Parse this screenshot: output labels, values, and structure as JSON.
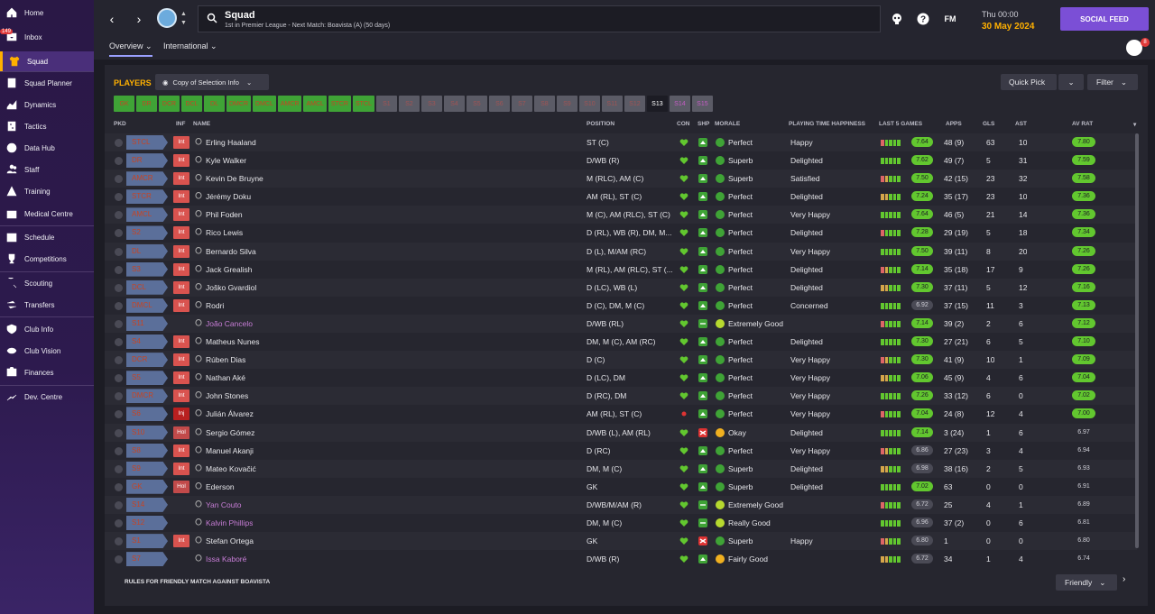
{
  "sidebar": {
    "inbox_badge": "149",
    "items": [
      {
        "label": "Home",
        "icon": "home-icon"
      },
      {
        "label": "Inbox",
        "icon": "inbox-icon"
      },
      {
        "label": "Squad",
        "icon": "shirt-icon"
      },
      {
        "label": "Squad Planner",
        "icon": "planner-icon"
      },
      {
        "label": "Dynamics",
        "icon": "dynamics-icon"
      },
      {
        "label": "Tactics",
        "icon": "tactics-icon"
      },
      {
        "label": "Data Hub",
        "icon": "data-hub-icon"
      },
      {
        "label": "Staff",
        "icon": "staff-icon"
      },
      {
        "label": "Training",
        "icon": "training-icon"
      },
      {
        "label": "Medical Centre",
        "icon": "medical-icon"
      },
      {
        "label": "Schedule",
        "icon": "calendar-icon"
      },
      {
        "label": "Competitions",
        "icon": "trophy-icon"
      },
      {
        "label": "Scouting",
        "icon": "scouting-icon"
      },
      {
        "label": "Transfers",
        "icon": "transfers-icon"
      },
      {
        "label": "Club Info",
        "icon": "shield-icon"
      },
      {
        "label": "Club Vision",
        "icon": "vision-icon"
      },
      {
        "label": "Finances",
        "icon": "finances-icon"
      },
      {
        "label": "Dev. Centre",
        "icon": "dev-centre-icon"
      }
    ]
  },
  "header": {
    "title": "Squad",
    "subtitle": "1st in Premier League - Next Match: Boavista (A) (50 days)",
    "fm_label": "FM",
    "date_time": "Thu 00:00",
    "date_day": "30 May 2024",
    "social_feed": "SOCIAL FEED",
    "avatar_badge": "8",
    "tabs": [
      "Overview",
      "International"
    ]
  },
  "panel": {
    "players_label": "PLAYERS",
    "selection_info": "Copy of Selection Info",
    "quick_pick": "Quick Pick",
    "filter": "Filter",
    "position_buttons": [
      "GK",
      "DR",
      "DCR",
      "DCL",
      "DL",
      "DMCR",
      "DMCL",
      "AMCR",
      "AMCL",
      "STCR",
      "STCL",
      "S1",
      "S2",
      "S3",
      "S4",
      "S5",
      "S6",
      "S7",
      "S8",
      "S9",
      "S10",
      "S11",
      "S12",
      "S13",
      "S14",
      "S15"
    ],
    "columns": [
      "PKD",
      "INF",
      "NAME",
      "POSITION",
      "CON",
      "SHP",
      "MORALE",
      "PLAYING TIME HAPPINESS",
      "LAST 5 GAMES",
      "APPS",
      "GLS",
      "AST",
      "AV RAT"
    ],
    "rules_text": "RULES FOR FRIENDLY MATCH AGAINST BOAVISTA",
    "friendly": "Friendly"
  },
  "colors": {
    "accent": "#ffb000",
    "social": "#7b4fd6",
    "green": "#62c72f",
    "sidebar": "#2d1a4e"
  },
  "players": [
    {
      "role": "STCL",
      "inf": "Int",
      "name": "Erling Haaland",
      "pos": "ST (C)",
      "con": "green",
      "shp": "up",
      "morale": "Perfect",
      "ptime": "Happy",
      "form": "7.64",
      "apps": "48 (9)",
      "gls": "63",
      "ast": "10",
      "avr": "7.80",
      "loan": false
    },
    {
      "role": "DR",
      "inf": "Int",
      "name": "Kyle Walker",
      "pos": "D/WB (R)",
      "con": "green",
      "shp": "up",
      "morale": "Superb",
      "ptime": "Delighted",
      "form": "7.62",
      "apps": "49 (7)",
      "gls": "5",
      "ast": "31",
      "avr": "7.59",
      "loan": false
    },
    {
      "role": "AMCR",
      "inf": "Int",
      "name": "Kevin De Bruyne",
      "pos": "M (RLC), AM (C)",
      "con": "green",
      "shp": "up",
      "morale": "Superb",
      "ptime": "Satisfied",
      "form": "7.50",
      "apps": "42 (15)",
      "gls": "23",
      "ast": "32",
      "avr": "7.58",
      "loan": false
    },
    {
      "role": "STCR",
      "inf": "Int",
      "name": "Jérémy Doku",
      "pos": "AM (RL), ST (C)",
      "con": "green",
      "shp": "up",
      "morale": "Perfect",
      "ptime": "Delighted",
      "form": "7.24",
      "apps": "35 (17)",
      "gls": "23",
      "ast": "10",
      "avr": "7.36",
      "loan": false
    },
    {
      "role": "AMCL",
      "inf": "Int",
      "name": "Phil Foden",
      "pos": "M (C), AM (RLC), ST (C)",
      "con": "green",
      "shp": "up",
      "morale": "Perfect",
      "ptime": "Very Happy",
      "form": "7.64",
      "apps": "46 (5)",
      "gls": "21",
      "ast": "14",
      "avr": "7.36",
      "loan": false
    },
    {
      "role": "S2",
      "inf": "Int",
      "name": "Rico Lewis",
      "pos": "D (RL), WB (R), DM, M...",
      "con": "green",
      "shp": "up",
      "morale": "Perfect",
      "ptime": "Delighted",
      "form": "7.28",
      "apps": "29 (19)",
      "gls": "5",
      "ast": "18",
      "avr": "7.34",
      "loan": false
    },
    {
      "role": "DL",
      "inf": "Int",
      "name": "Bernardo Silva",
      "pos": "D (L), M/AM (RC)",
      "con": "green",
      "shp": "up",
      "morale": "Perfect",
      "ptime": "Very Happy",
      "form": "7.50",
      "apps": "39 (11)",
      "gls": "8",
      "ast": "20",
      "avr": "7.26",
      "loan": false
    },
    {
      "role": "S3",
      "inf": "Int",
      "name": "Jack Grealish",
      "pos": "M (RL), AM (RLC), ST (...",
      "con": "green",
      "shp": "up",
      "morale": "Perfect",
      "ptime": "Delighted",
      "form": "7.14",
      "apps": "35 (18)",
      "gls": "17",
      "ast": "9",
      "avr": "7.26",
      "loan": false
    },
    {
      "role": "DCL",
      "inf": "Int",
      "name": "Joško Gvardiol",
      "pos": "D (LC), WB (L)",
      "con": "green",
      "shp": "up",
      "morale": "Perfect",
      "ptime": "Delighted",
      "form": "7.30",
      "apps": "37 (11)",
      "gls": "5",
      "ast": "12",
      "avr": "7.16",
      "loan": false
    },
    {
      "role": "DMCL",
      "inf": "Int",
      "name": "Rodri",
      "pos": "D (C), DM, M (C)",
      "con": "green",
      "shp": "up",
      "morale": "Perfect",
      "ptime": "Concerned",
      "form": "6.92",
      "apps": "37 (15)",
      "gls": "11",
      "ast": "3",
      "avr": "7.13",
      "loan": false
    },
    {
      "role": "S11",
      "inf": "",
      "name": "João Cancelo",
      "pos": "D/WB (RL)",
      "con": "green",
      "shp": "flat",
      "morale": "Extremely Good",
      "ptime": "",
      "form": "7.14",
      "apps": "39 (2)",
      "gls": "2",
      "ast": "6",
      "avr": "7.12",
      "loan": true
    },
    {
      "role": "S4",
      "inf": "Int",
      "name": "Matheus Nunes",
      "pos": "DM, M (C), AM (RC)",
      "con": "green",
      "shp": "up",
      "morale": "Perfect",
      "ptime": "Delighted",
      "form": "7.30",
      "apps": "27 (21)",
      "gls": "6",
      "ast": "5",
      "avr": "7.10",
      "loan": false
    },
    {
      "role": "DCR",
      "inf": "Int",
      "name": "Rúben Dias",
      "pos": "D (C)",
      "con": "green",
      "shp": "up",
      "morale": "Perfect",
      "ptime": "Very Happy",
      "form": "7.30",
      "apps": "41 (9)",
      "gls": "10",
      "ast": "1",
      "avr": "7.09",
      "loan": false
    },
    {
      "role": "S5",
      "inf": "Int",
      "name": "Nathan Aké",
      "pos": "D (LC), DM",
      "con": "green",
      "shp": "up",
      "morale": "Perfect",
      "ptime": "Very Happy",
      "form": "7.06",
      "apps": "45 (9)",
      "gls": "4",
      "ast": "6",
      "avr": "7.04",
      "loan": false
    },
    {
      "role": "DMCR",
      "inf": "Int",
      "name": "John Stones",
      "pos": "D (RC), DM",
      "con": "green",
      "shp": "up",
      "morale": "Perfect",
      "ptime": "Very Happy",
      "form": "7.26",
      "apps": "33 (12)",
      "gls": "6",
      "ast": "0",
      "avr": "7.02",
      "loan": false
    },
    {
      "role": "S6",
      "inf": "Inj",
      "name": "Julián Álvarez",
      "pos": "AM (RL), ST (C)",
      "con": "red",
      "shp": "up",
      "morale": "Perfect",
      "ptime": "Very Happy",
      "form": "7.04",
      "apps": "24 (8)",
      "gls": "12",
      "ast": "4",
      "avr": "7.00",
      "loan": false
    },
    {
      "role": "S10",
      "inf": "Hol",
      "name": "Sergio Gómez",
      "pos": "D/WB (L), AM (RL)",
      "con": "green",
      "shp": "down",
      "morale": "Okay",
      "ptime": "Delighted",
      "form": "7.14",
      "apps": "3 (24)",
      "gls": "1",
      "ast": "6",
      "avr": "6.97",
      "loan": false
    },
    {
      "role": "S8",
      "inf": "Int",
      "name": "Manuel Akanji",
      "pos": "D (RC)",
      "con": "green",
      "shp": "up",
      "morale": "Perfect",
      "ptime": "Very Happy",
      "form": "6.86",
      "apps": "27 (23)",
      "gls": "3",
      "ast": "4",
      "avr": "6.94",
      "loan": false
    },
    {
      "role": "S9",
      "inf": "Int",
      "name": "Mateo Kovačić",
      "pos": "DM, M (C)",
      "con": "green",
      "shp": "up",
      "morale": "Superb",
      "ptime": "Delighted",
      "form": "6.98",
      "apps": "38 (16)",
      "gls": "2",
      "ast": "5",
      "avr": "6.93",
      "loan": false
    },
    {
      "role": "GK",
      "inf": "Hol",
      "name": "Ederson",
      "pos": "GK",
      "con": "green",
      "shp": "up",
      "morale": "Superb",
      "ptime": "Delighted",
      "form": "7.02",
      "apps": "63",
      "gls": "0",
      "ast": "0",
      "avr": "6.91",
      "loan": false
    },
    {
      "role": "S14",
      "inf": "",
      "name": "Yan Couto",
      "pos": "D/WB/M/AM (R)",
      "con": "green",
      "shp": "flat",
      "morale": "Extremely Good",
      "ptime": "",
      "form": "6.72",
      "apps": "25",
      "gls": "4",
      "ast": "1",
      "avr": "6.89",
      "loan": true
    },
    {
      "role": "S12",
      "inf": "",
      "name": "Kalvin Phillips",
      "pos": "DM, M (C)",
      "con": "green",
      "shp": "flat",
      "morale": "Really Good",
      "ptime": "",
      "form": "6.96",
      "apps": "37 (2)",
      "gls": "0",
      "ast": "6",
      "avr": "6.81",
      "loan": true
    },
    {
      "role": "S1",
      "inf": "Int",
      "name": "Stefan Ortega",
      "pos": "GK",
      "con": "green",
      "shp": "down",
      "morale": "Superb",
      "ptime": "Happy",
      "form": "6.80",
      "apps": "1",
      "gls": "0",
      "ast": "0",
      "avr": "6.80",
      "loan": false
    },
    {
      "role": "S7",
      "inf": "",
      "name": "Issa Kaboré",
      "pos": "D/WB (R)",
      "con": "green",
      "shp": "up",
      "morale": "Fairly Good",
      "ptime": "",
      "form": "6.72",
      "apps": "34",
      "gls": "1",
      "ast": "4",
      "avr": "6.74",
      "loan": true
    }
  ]
}
